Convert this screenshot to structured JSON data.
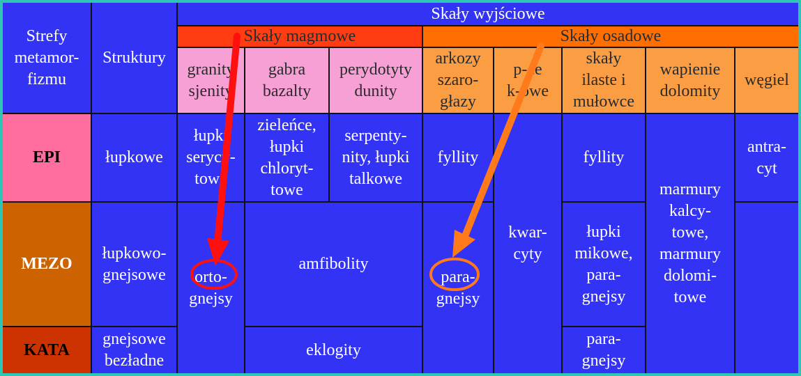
{
  "header": {
    "strefy": "Strefy\nmetamor-\nfizmu",
    "struktury": "Struktury",
    "skaly_wyjsciowe": "Skały wyjściowe",
    "skaly_magmowe": "Skały magmowe",
    "skaly_osadowe": "Skały osadowe",
    "rocks": {
      "granity": "granity\nsjenity",
      "gabra": "gabra\nbazalty",
      "perydotyty": "perydotyty\ndunity",
      "arkozy": "arkozy\nszaro-\ngłazy",
      "piaskowce": "p-ce\nk-owe",
      "ilaste": "skały\nilaste i\nmułowce",
      "wapienie": "wapienie\ndolomity",
      "wegiel": "węgiel"
    }
  },
  "zones": {
    "epi": "EPI",
    "mezo": "MEZO",
    "kata": "KATA"
  },
  "structures": {
    "epi": "łupkowe",
    "mezo": "łupkowo-\ngnejsowe",
    "kata": "gnejsowe\nbezładne"
  },
  "cells": {
    "epi_granity": "łupki\nserycy-\ntowe",
    "epi_gabra": "zieleńce,\nłupki\nchloryt-\ntowe",
    "epi_perydotyty": "serpenty-\nnity, łupki\ntalkowe",
    "epi_arkozy": "fyllity",
    "epi_ilaste": "fyllity",
    "epi_wegiel": "antra-\ncyt",
    "granity_lower": "orto-\ngnejsy",
    "amfibolity": "amfibolity",
    "arkozy_lower": "para-\ngnejsy",
    "kwarcyty": "kwar-\ncyty",
    "mezo_ilaste": "łupki\nmikowe,\npara-\ngnejsy",
    "marmury": "marmury\nkalcy-\ntowe,\nmarmury\ndolomi-\ntowe",
    "eklogity": "eklogity",
    "kata_ilaste": "para-\ngnejsy",
    "wegiel_lower": ""
  },
  "colors": {
    "blue": "#3333f5",
    "pink": "#f6a0d6",
    "peach": "#fb9d43",
    "red_header": "#ff3c12",
    "orange_header": "#ff6e00",
    "red_arrow": "#ff1010",
    "orange_arrow": "#ff7a1a"
  },
  "annotations": [
    {
      "name": "red-arrow",
      "target": "orto-gnejsy"
    },
    {
      "name": "orange-arrow",
      "target": "para-gnejsy"
    }
  ]
}
